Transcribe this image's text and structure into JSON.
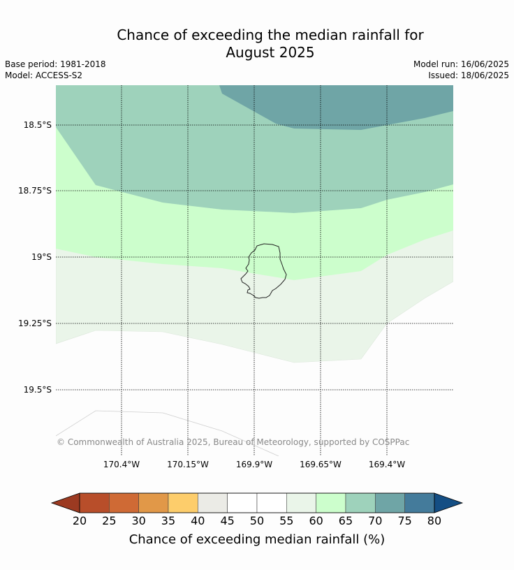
{
  "title_line1": "Chance of exceeding the median rainfall for",
  "title_line2": "August 2025",
  "meta": {
    "base_period": "Base period: 1981-2018",
    "model": "Model: ACCESS-S2",
    "model_run": "Model run: 16/06/2025",
    "issued": "Issued: 18/06/2025"
  },
  "map": {
    "latitudes": [
      "18.5°S",
      "18.75°S",
      "19°S",
      "19.25°S",
      "19.5°S"
    ],
    "longitudes": [
      "170.4°W",
      "170.15°W",
      "169.9°W",
      "169.65°W",
      "169.4°W"
    ],
    "copyright": "© Commonwealth of Australia 2025, Bureau of Meteorology, supported by COSPPac",
    "zones": [
      "70-75%",
      "65-70%",
      "60-65%",
      "55-60%",
      "50-55%"
    ]
  },
  "colorbar": {
    "title": "Chance of exceeding median rainfall (%)",
    "ticks": [
      "20",
      "25",
      "30",
      "35",
      "40",
      "45",
      "50",
      "55",
      "60",
      "65",
      "70",
      "75",
      "80"
    ],
    "colors": [
      "#9c3a21",
      "#b84e2a",
      "#cf6a35",
      "#e19848",
      "#fdcd6b",
      "#ebebe6",
      "#ffffff",
      "#ffffff",
      "#eaf5e9",
      "#ccfecc",
      "#9ed2bb",
      "#6fa5a6",
      "#447b9b",
      "#144e84"
    ]
  }
}
